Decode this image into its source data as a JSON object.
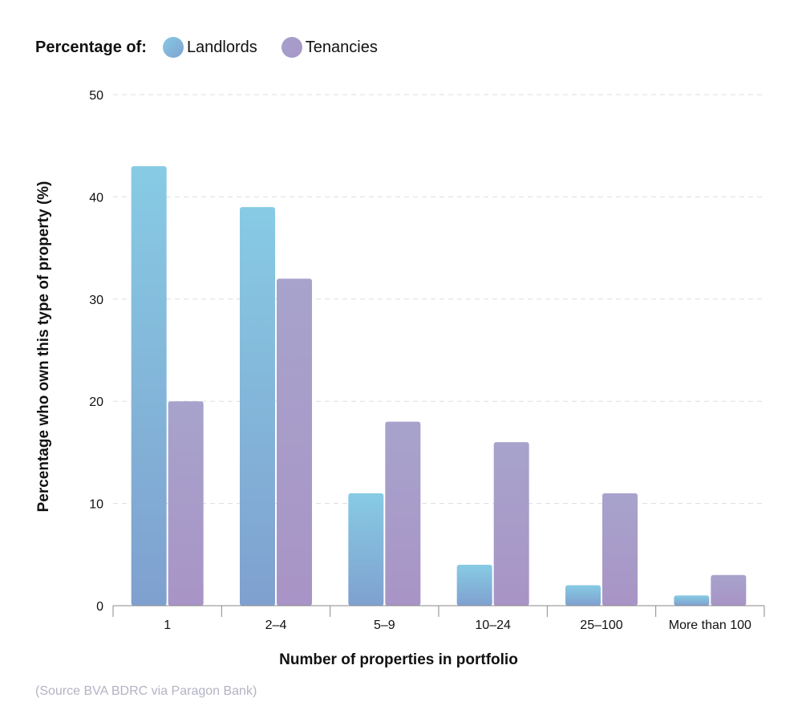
{
  "legend": {
    "title": "Percentage of:",
    "items": [
      "Landlords",
      "Tenancies"
    ]
  },
  "source": "(Source BVA BDRC via Paragon Bank)",
  "colors": {
    "landlords_top": "#87cbe4",
    "landlords_bottom": "#7fa0cf",
    "tenancies_top": "#a7a3cc",
    "tenancies_bottom": "#a894c6",
    "grid": "#dddddd",
    "axis": "#888888",
    "text": "#111111",
    "source": "#b3b3c4"
  },
  "chart_data": {
    "type": "bar",
    "title": "",
    "xlabel": "Number of properties in portfolio",
    "ylabel": "Percentage who own this type of property (%)",
    "categories": [
      "1",
      "2–4",
      "5–9",
      "10–24",
      "25–100",
      "More than 100"
    ],
    "series": [
      {
        "name": "Landlords",
        "values": [
          43,
          39,
          11,
          4,
          2,
          1
        ]
      },
      {
        "name": "Tenancies",
        "values": [
          20,
          32,
          18,
          16,
          11,
          3
        ]
      }
    ],
    "ylim": [
      0,
      50
    ],
    "yticks": [
      0,
      10,
      20,
      30,
      40,
      50
    ],
    "grid": true,
    "legend_position": "top-left"
  }
}
